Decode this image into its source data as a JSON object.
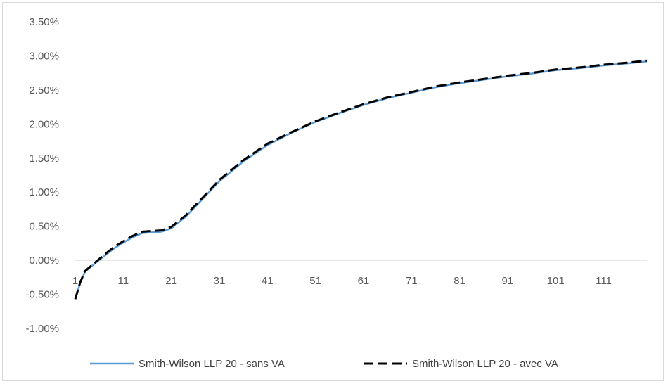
{
  "chart_data": {
    "type": "line",
    "title": "",
    "xlabel": "",
    "ylabel": "",
    "xlim": [
      1,
      120
    ],
    "ylim": [
      -1.0,
      3.5
    ],
    "x_ticks": [
      "1",
      "11",
      "21",
      "31",
      "41",
      "51",
      "61",
      "71",
      "81",
      "91",
      "101",
      "111"
    ],
    "y_ticks": [
      "3.50%",
      "3.00%",
      "2.50%",
      "2.00%",
      "1.50%",
      "1.00%",
      "0.50%",
      "0.00%",
      "-0.50%",
      "-1.00%"
    ],
    "y_tick_values": [
      3.5,
      3.0,
      2.5,
      2.0,
      1.5,
      1.0,
      0.5,
      0.0,
      -0.5,
      -1.0
    ],
    "grid": false,
    "legend_position": "bottom",
    "series": [
      {
        "name": "Smith-Wilson LLP 20 - sans VA",
        "color": "#5b9bd5",
        "style": "solid",
        "x": [
          1,
          2,
          3,
          5,
          7,
          9,
          11,
          13,
          15,
          17,
          19,
          21,
          24,
          27,
          31,
          36,
          41,
          46,
          51,
          56,
          61,
          66,
          71,
          76,
          81,
          86,
          91,
          96,
          101,
          106,
          111,
          116,
          120
        ],
        "y": [
          -0.57,
          -0.34,
          -0.17,
          -0.05,
          0.06,
          0.17,
          0.26,
          0.34,
          0.4,
          0.41,
          0.42,
          0.47,
          0.64,
          0.86,
          1.16,
          1.45,
          1.69,
          1.87,
          2.03,
          2.16,
          2.28,
          2.38,
          2.46,
          2.54,
          2.6,
          2.65,
          2.7,
          2.74,
          2.79,
          2.82,
          2.86,
          2.89,
          2.92
        ]
      },
      {
        "name": "Smith-Wilson LLP 20 - avec VA",
        "color": "#000000",
        "style": "dashed",
        "x": [
          1,
          2,
          3,
          5,
          7,
          9,
          11,
          13,
          15,
          17,
          19,
          21,
          24,
          27,
          31,
          36,
          41,
          46,
          51,
          56,
          61,
          66,
          71,
          76,
          81,
          86,
          91,
          96,
          101,
          106,
          111,
          116,
          120
        ],
        "y": [
          -0.57,
          -0.33,
          -0.16,
          -0.04,
          0.08,
          0.19,
          0.28,
          0.36,
          0.42,
          0.43,
          0.44,
          0.49,
          0.66,
          0.88,
          1.18,
          1.47,
          1.71,
          1.88,
          2.04,
          2.17,
          2.29,
          2.39,
          2.47,
          2.55,
          2.61,
          2.66,
          2.71,
          2.75,
          2.8,
          2.83,
          2.87,
          2.9,
          2.93
        ]
      }
    ]
  }
}
